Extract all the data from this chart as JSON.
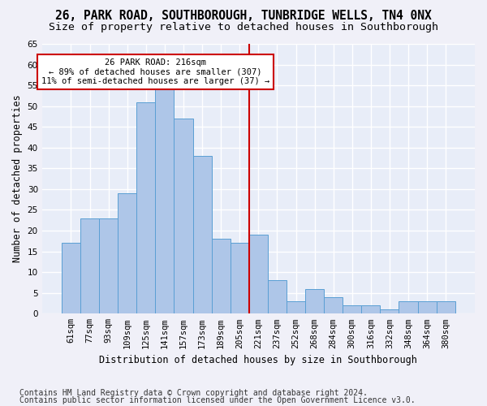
{
  "title1": "26, PARK ROAD, SOUTHBOROUGH, TUNBRIDGE WELLS, TN4 0NX",
  "title2": "Size of property relative to detached houses in Southborough",
  "xlabel": "Distribution of detached houses by size in Southborough",
  "ylabel": "Number of detached properties",
  "categories": [
    "61sqm",
    "77sqm",
    "93sqm",
    "109sqm",
    "125sqm",
    "141sqm",
    "157sqm",
    "173sqm",
    "189sqm",
    "205sqm",
    "221sqm",
    "237sqm",
    "252sqm",
    "268sqm",
    "284sqm",
    "300sqm",
    "316sqm",
    "332sqm",
    "348sqm",
    "364sqm",
    "380sqm"
  ],
  "bar_heights": [
    17,
    23,
    23,
    29,
    51,
    54,
    47,
    38,
    18,
    17,
    19,
    8,
    3,
    6,
    4,
    2,
    2,
    1,
    3,
    3,
    3
  ],
  "bar_color": "#aec6e8",
  "bar_edge_color": "#5a9fd4",
  "vline_color": "#cc0000",
  "annotation_text": "26 PARK ROAD: 216sqm\n← 89% of detached houses are smaller (307)\n11% of semi-detached houses are larger (37) →",
  "annotation_box_color": "#ffffff",
  "annotation_box_edge": "#cc0000",
  "ylim": [
    0,
    65
  ],
  "yticks": [
    0,
    5,
    10,
    15,
    20,
    25,
    30,
    35,
    40,
    45,
    50,
    55,
    60,
    65
  ],
  "background_color": "#e8edf8",
  "grid_color": "#ffffff",
  "footer1": "Contains HM Land Registry data © Crown copyright and database right 2024.",
  "footer2": "Contains public sector information licensed under the Open Government Licence v3.0.",
  "title1_fontsize": 10.5,
  "title2_fontsize": 9.5,
  "xlabel_fontsize": 8.5,
  "ylabel_fontsize": 8.5,
  "tick_fontsize": 7.5,
  "footer_fontsize": 7.0
}
